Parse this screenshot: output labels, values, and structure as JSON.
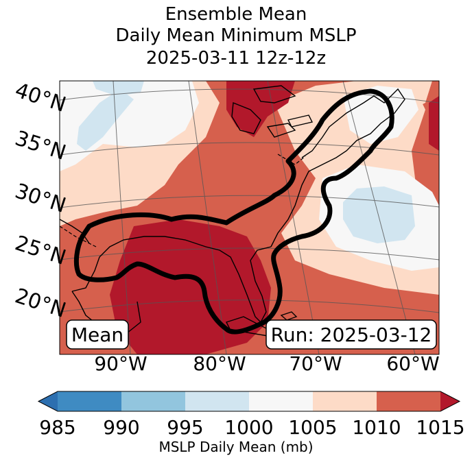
{
  "title": {
    "line1": "Ensemble Mean",
    "line2": "Daily Mean Minimum MSLP",
    "line3": "2025-03-11 12z-12z"
  },
  "map": {
    "lat_labels": [
      "40°N",
      "35°N",
      "30°N",
      "25°N",
      "20°N"
    ],
    "lon_labels": [
      "90°W",
      "80°W",
      "70°W",
      "60°W"
    ],
    "mean_label": "Mean",
    "run_label": "Run: 2025-03-12"
  },
  "colorbar": {
    "label": "MSLP Daily Mean (mb)",
    "ticks": [
      "985",
      "990",
      "995",
      "1000",
      "1005",
      "1010",
      "1015"
    ],
    "colors": [
      "#2c6fb0",
      "#3f8bc2",
      "#92c5de",
      "#d1e5f0",
      "#f7f7f7",
      "#fddbc7",
      "#d6604d",
      "#b2182b"
    ]
  }
}
